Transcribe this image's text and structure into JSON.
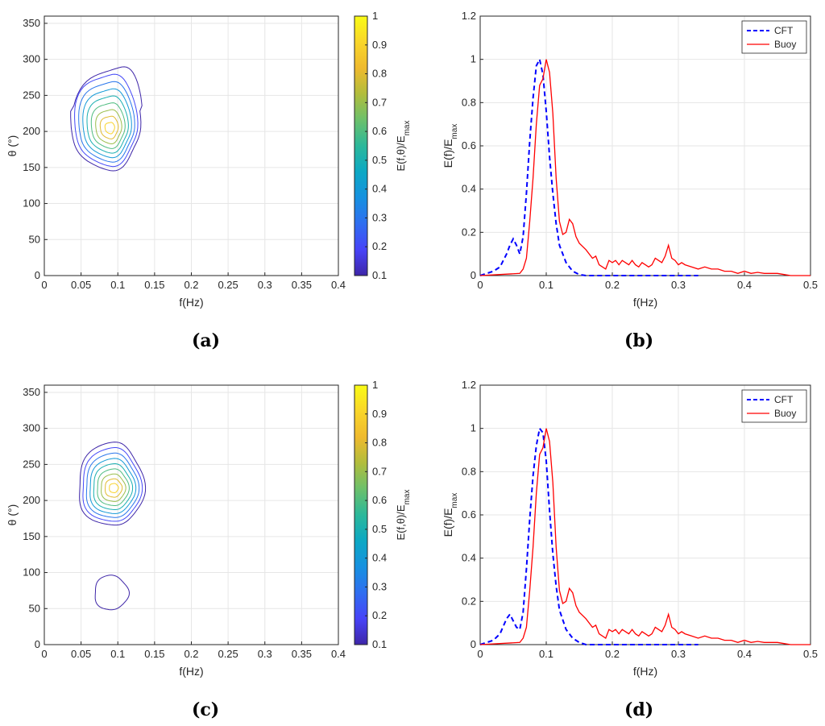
{
  "chart_data": [
    {
      "type": "contour",
      "panel": "(a)",
      "xlabel": "f(Hz)",
      "ylabel": "θ (°)",
      "xlim": [
        0,
        0.4
      ],
      "ylim": [
        0,
        360
      ],
      "xticks": [
        "0",
        "0.05",
        "0.1",
        "0.15",
        "0.2",
        "0.25",
        "0.3",
        "0.35",
        "0.4"
      ],
      "yticks": [
        "0",
        "50",
        "100",
        "150",
        "200",
        "250",
        "300",
        "350"
      ],
      "colorbar": {
        "label": "E(f,θ)/E_max",
        "ticks": [
          "0.1",
          "0.2",
          "0.3",
          "0.4",
          "0.5",
          "0.6",
          "0.7",
          "0.8",
          "0.9",
          "1"
        ],
        "range": [
          0.1,
          1
        ]
      },
      "peaks": [
        {
          "f": 0.09,
          "theta": 205,
          "value": 1.0
        }
      ],
      "outer_contour_extent": {
        "f": [
          0.035,
          0.13
        ],
        "theta": [
          148,
          292
        ]
      },
      "contour_levels": [
        0.1,
        0.2,
        0.3,
        0.4,
        0.5,
        0.6,
        0.7,
        0.8,
        0.9
      ]
    },
    {
      "type": "line",
      "panel": "(b)",
      "xlabel": "f(Hz)",
      "ylabel": "E(f)/E_max",
      "xlim": [
        0,
        0.5
      ],
      "ylim": [
        0,
        1.2
      ],
      "xticks": [
        "0",
        "0.1",
        "0.2",
        "0.3",
        "0.4",
        "0.5"
      ],
      "yticks": [
        "0",
        "0.2",
        "0.4",
        "0.6",
        "0.8",
        "1",
        "1.2"
      ],
      "legend": [
        "CFT",
        "Buoy"
      ],
      "series": [
        {
          "name": "CFT",
          "color": "#0000ff",
          "style": "dashed",
          "x": [
            0,
            0.01,
            0.02,
            0.03,
            0.04,
            0.045,
            0.05,
            0.055,
            0.06,
            0.065,
            0.07,
            0.075,
            0.08,
            0.085,
            0.09,
            0.095,
            0.1,
            0.105,
            0.11,
            0.115,
            0.12,
            0.13,
            0.14,
            0.15,
            0.16,
            0.18,
            0.2,
            0.25,
            0.3,
            0.33
          ],
          "y": [
            0,
            0.01,
            0.02,
            0.04,
            0.1,
            0.14,
            0.17,
            0.14,
            0.1,
            0.18,
            0.38,
            0.62,
            0.82,
            0.97,
            1.0,
            0.93,
            0.76,
            0.55,
            0.38,
            0.24,
            0.14,
            0.06,
            0.02,
            0.005,
            0,
            0,
            0,
            0,
            0,
            0
          ]
        },
        {
          "name": "Buoy",
          "color": "#ff0000",
          "style": "solid",
          "x": [
            0,
            0.06,
            0.065,
            0.07,
            0.075,
            0.08,
            0.085,
            0.09,
            0.095,
            0.1,
            0.105,
            0.11,
            0.115,
            0.12,
            0.125,
            0.13,
            0.135,
            0.14,
            0.145,
            0.15,
            0.16,
            0.17,
            0.175,
            0.18,
            0.19,
            0.195,
            0.2,
            0.205,
            0.21,
            0.215,
            0.22,
            0.225,
            0.23,
            0.235,
            0.24,
            0.245,
            0.25,
            0.255,
            0.26,
            0.265,
            0.27,
            0.275,
            0.28,
            0.285,
            0.29,
            0.295,
            0.3,
            0.305,
            0.31,
            0.32,
            0.33,
            0.34,
            0.35,
            0.36,
            0.37,
            0.38,
            0.39,
            0.4,
            0.41,
            0.42,
            0.43,
            0.44,
            0.45,
            0.46,
            0.47,
            0.5
          ],
          "y": [
            0,
            0.01,
            0.03,
            0.08,
            0.25,
            0.45,
            0.7,
            0.88,
            0.91,
            1.0,
            0.94,
            0.75,
            0.45,
            0.25,
            0.19,
            0.2,
            0.26,
            0.24,
            0.18,
            0.15,
            0.12,
            0.08,
            0.09,
            0.05,
            0.03,
            0.07,
            0.06,
            0.07,
            0.05,
            0.07,
            0.06,
            0.05,
            0.07,
            0.05,
            0.04,
            0.06,
            0.05,
            0.04,
            0.05,
            0.08,
            0.07,
            0.06,
            0.09,
            0.14,
            0.08,
            0.07,
            0.05,
            0.06,
            0.05,
            0.04,
            0.03,
            0.04,
            0.03,
            0.03,
            0.02,
            0.02,
            0.01,
            0.02,
            0.01,
            0.015,
            0.01,
            0.01,
            0.01,
            0.005,
            0,
            0
          ]
        }
      ]
    },
    {
      "type": "contour",
      "panel": "(c)",
      "xlabel": "f(Hz)",
      "ylabel": "θ (°)",
      "xlim": [
        0,
        0.4
      ],
      "ylim": [
        0,
        360
      ],
      "xticks": [
        "0",
        "0.05",
        "0.1",
        "0.15",
        "0.2",
        "0.25",
        "0.3",
        "0.35",
        "0.4"
      ],
      "yticks": [
        "0",
        "50",
        "100",
        "150",
        "200",
        "250",
        "300",
        "350"
      ],
      "colorbar": {
        "label": "E(f,θ)/E_max",
        "ticks": [
          "0.1",
          "0.2",
          "0.3",
          "0.4",
          "0.5",
          "0.6",
          "0.7",
          "0.8",
          "0.9",
          "1"
        ],
        "range": [
          0.1,
          1
        ]
      },
      "peaks": [
        {
          "f": 0.095,
          "theta": 218,
          "value": 1.0
        },
        {
          "f": 0.09,
          "theta": 72,
          "value": 0.1
        }
      ],
      "outer_contour_extent": {
        "f": [
          0.045,
          0.135
        ],
        "theta": [
          165,
          280
        ]
      },
      "contour_levels": [
        0.1,
        0.2,
        0.3,
        0.4,
        0.5,
        0.6,
        0.7,
        0.8,
        0.9
      ]
    },
    {
      "type": "line",
      "panel": "(d)",
      "xlabel": "f(Hz)",
      "ylabel": "E(f)/E_max",
      "xlim": [
        0,
        0.5
      ],
      "ylim": [
        0,
        1.2
      ],
      "xticks": [
        "0",
        "0.1",
        "0.2",
        "0.3",
        "0.4",
        "0.5"
      ],
      "yticks": [
        "0",
        "0.2",
        "0.4",
        "0.6",
        "0.8",
        "1",
        "1.2"
      ],
      "legend": [
        "CFT",
        "Buoy"
      ],
      "series": [
        {
          "name": "CFT",
          "color": "#0000ff",
          "style": "dashed",
          "x": [
            0,
            0.01,
            0.02,
            0.03,
            0.04,
            0.045,
            0.05,
            0.055,
            0.06,
            0.065,
            0.07,
            0.075,
            0.08,
            0.085,
            0.09,
            0.095,
            0.1,
            0.105,
            0.11,
            0.115,
            0.12,
            0.13,
            0.14,
            0.15,
            0.16,
            0.18,
            0.2,
            0.25,
            0.3,
            0.33
          ],
          "y": [
            0,
            0.01,
            0.02,
            0.05,
            0.12,
            0.14,
            0.11,
            0.08,
            0.07,
            0.15,
            0.35,
            0.58,
            0.78,
            0.92,
            1.0,
            0.98,
            0.85,
            0.62,
            0.42,
            0.27,
            0.16,
            0.07,
            0.03,
            0.01,
            0,
            0,
            0,
            0,
            0,
            0
          ]
        },
        {
          "name": "Buoy",
          "color": "#ff0000",
          "style": "solid",
          "x": [
            0,
            0.06,
            0.065,
            0.07,
            0.075,
            0.08,
            0.085,
            0.09,
            0.095,
            0.1,
            0.105,
            0.11,
            0.115,
            0.12,
            0.125,
            0.13,
            0.135,
            0.14,
            0.145,
            0.15,
            0.16,
            0.17,
            0.175,
            0.18,
            0.19,
            0.195,
            0.2,
            0.205,
            0.21,
            0.215,
            0.22,
            0.225,
            0.23,
            0.235,
            0.24,
            0.245,
            0.25,
            0.255,
            0.26,
            0.265,
            0.27,
            0.275,
            0.28,
            0.285,
            0.29,
            0.295,
            0.3,
            0.305,
            0.31,
            0.32,
            0.33,
            0.34,
            0.35,
            0.36,
            0.37,
            0.38,
            0.39,
            0.4,
            0.41,
            0.42,
            0.43,
            0.44,
            0.45,
            0.46,
            0.47,
            0.5
          ],
          "y": [
            0,
            0.01,
            0.03,
            0.08,
            0.25,
            0.45,
            0.7,
            0.88,
            0.91,
            1.0,
            0.94,
            0.75,
            0.45,
            0.25,
            0.19,
            0.2,
            0.26,
            0.24,
            0.18,
            0.15,
            0.12,
            0.08,
            0.09,
            0.05,
            0.03,
            0.07,
            0.06,
            0.07,
            0.05,
            0.07,
            0.06,
            0.05,
            0.07,
            0.05,
            0.04,
            0.06,
            0.05,
            0.04,
            0.05,
            0.08,
            0.07,
            0.06,
            0.09,
            0.14,
            0.08,
            0.07,
            0.05,
            0.06,
            0.05,
            0.04,
            0.03,
            0.04,
            0.03,
            0.03,
            0.02,
            0.02,
            0.01,
            0.02,
            0.01,
            0.015,
            0.01,
            0.01,
            0.01,
            0.005,
            0,
            0
          ]
        }
      ]
    }
  ],
  "colormap": [
    "#3e26a8",
    "#4743f8",
    "#2f6ef0",
    "#1691e0",
    "#0ca8c4",
    "#2bb89a",
    "#6cc06b",
    "#b1bd3c",
    "#efba2e",
    "#f9d62a",
    "#f9fb15"
  ]
}
